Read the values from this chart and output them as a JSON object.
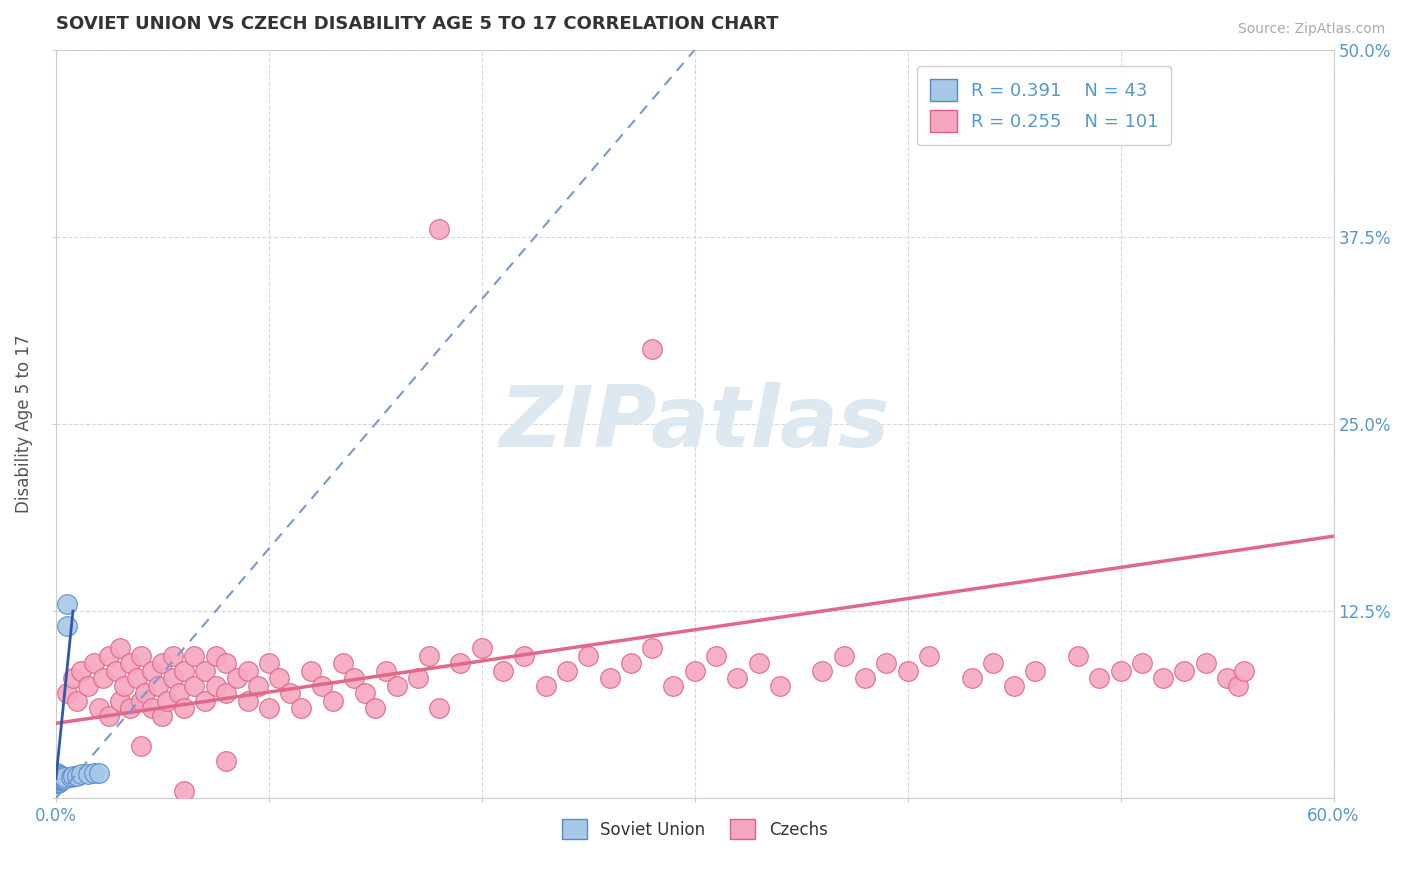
{
  "title": "SOVIET UNION VS CZECH DISABILITY AGE 5 TO 17 CORRELATION CHART",
  "source_text": "Source: ZipAtlas.com",
  "ylabel": "Disability Age 5 to 17",
  "xlim": [
    0.0,
    0.6
  ],
  "ylim": [
    0.0,
    0.5
  ],
  "xtick_positions": [
    0.0,
    0.1,
    0.2,
    0.3,
    0.4,
    0.5,
    0.6
  ],
  "ytick_positions": [
    0.0,
    0.125,
    0.25,
    0.375,
    0.5
  ],
  "legend_blue_R": "0.391",
  "legend_blue_N": "43",
  "legend_pink_R": "0.255",
  "legend_pink_N": "101",
  "color_blue_fill": "#a8c8e8",
  "color_blue_edge": "#5588cc",
  "color_pink_fill": "#f4a8c0",
  "color_pink_edge": "#e06080",
  "color_trendline_blue": "#7799cc",
  "color_trendline_pink": "#e06888",
  "color_trendline_blue_solid": "#3355aa",
  "background_color": "#ffffff",
  "grid_color": "#d8d8d8",
  "title_color": "#333333",
  "axis_label_color": "#555555",
  "tick_label_color": "#5599cc",
  "watermark_color": "#dde8f0",
  "source_color": "#aaaaaa",
  "soviet_x": [
    0.0005,
    0.0005,
    0.0005,
    0.0005,
    0.0005,
    0.0005,
    0.0005,
    0.0005,
    0.0007,
    0.0007,
    0.0007,
    0.0007,
    0.0007,
    0.0007,
    0.001,
    0.001,
    0.001,
    0.001,
    0.001,
    0.001,
    0.001,
    0.0015,
    0.0015,
    0.0015,
    0.0015,
    0.002,
    0.002,
    0.002,
    0.002,
    0.003,
    0.003,
    0.003,
    0.004,
    0.004,
    0.005,
    0.005,
    0.007,
    0.008,
    0.01,
    0.012,
    0.015,
    0.018,
    0.02
  ],
  "soviet_y": [
    0.01,
    0.011,
    0.012,
    0.013,
    0.014,
    0.015,
    0.016,
    0.017,
    0.01,
    0.011,
    0.012,
    0.013,
    0.014,
    0.015,
    0.01,
    0.011,
    0.012,
    0.013,
    0.014,
    0.015,
    0.016,
    0.011,
    0.012,
    0.013,
    0.014,
    0.012,
    0.013,
    0.014,
    0.015,
    0.013,
    0.014,
    0.015,
    0.013,
    0.014,
    0.115,
    0.13,
    0.014,
    0.015,
    0.015,
    0.016,
    0.016,
    0.017,
    0.017
  ],
  "czech_x": [
    0.005,
    0.008,
    0.01,
    0.012,
    0.015,
    0.018,
    0.02,
    0.022,
    0.025,
    0.025,
    0.028,
    0.03,
    0.03,
    0.032,
    0.035,
    0.035,
    0.038,
    0.04,
    0.04,
    0.042,
    0.045,
    0.045,
    0.048,
    0.05,
    0.05,
    0.052,
    0.055,
    0.055,
    0.058,
    0.06,
    0.06,
    0.065,
    0.065,
    0.07,
    0.07,
    0.075,
    0.075,
    0.08,
    0.08,
    0.085,
    0.09,
    0.09,
    0.095,
    0.1,
    0.1,
    0.105,
    0.11,
    0.115,
    0.12,
    0.125,
    0.13,
    0.135,
    0.14,
    0.145,
    0.15,
    0.155,
    0.16,
    0.17,
    0.175,
    0.18,
    0.19,
    0.2,
    0.21,
    0.22,
    0.23,
    0.24,
    0.25,
    0.26,
    0.27,
    0.28,
    0.29,
    0.3,
    0.31,
    0.32,
    0.33,
    0.34,
    0.36,
    0.37,
    0.38,
    0.39,
    0.4,
    0.41,
    0.43,
    0.44,
    0.45,
    0.46,
    0.48,
    0.49,
    0.5,
    0.51,
    0.52,
    0.53,
    0.54,
    0.55,
    0.555,
    0.558,
    0.04,
    0.06,
    0.08,
    0.18,
    0.28
  ],
  "czech_y": [
    0.07,
    0.08,
    0.065,
    0.085,
    0.075,
    0.09,
    0.06,
    0.08,
    0.055,
    0.095,
    0.085,
    0.065,
    0.1,
    0.075,
    0.06,
    0.09,
    0.08,
    0.065,
    0.095,
    0.07,
    0.06,
    0.085,
    0.075,
    0.055,
    0.09,
    0.065,
    0.08,
    0.095,
    0.07,
    0.06,
    0.085,
    0.075,
    0.095,
    0.065,
    0.085,
    0.075,
    0.095,
    0.07,
    0.09,
    0.08,
    0.065,
    0.085,
    0.075,
    0.06,
    0.09,
    0.08,
    0.07,
    0.06,
    0.085,
    0.075,
    0.065,
    0.09,
    0.08,
    0.07,
    0.06,
    0.085,
    0.075,
    0.08,
    0.095,
    0.06,
    0.09,
    0.1,
    0.085,
    0.095,
    0.075,
    0.085,
    0.095,
    0.08,
    0.09,
    0.1,
    0.075,
    0.085,
    0.095,
    0.08,
    0.09,
    0.075,
    0.085,
    0.095,
    0.08,
    0.09,
    0.085,
    0.095,
    0.08,
    0.09,
    0.075,
    0.085,
    0.095,
    0.08,
    0.085,
    0.09,
    0.08,
    0.085,
    0.09,
    0.08,
    0.075,
    0.085,
    0.035,
    0.005,
    0.025,
    0.38,
    0.3
  ],
  "pink_trend_x0": 0.0,
  "pink_trend_y0": 0.05,
  "pink_trend_x1": 0.6,
  "pink_trend_y1": 0.175,
  "blue_trend_x0": 0.0,
  "blue_trend_y0": 0.0,
  "blue_trend_x1": 0.3,
  "blue_trend_y1": 0.5
}
